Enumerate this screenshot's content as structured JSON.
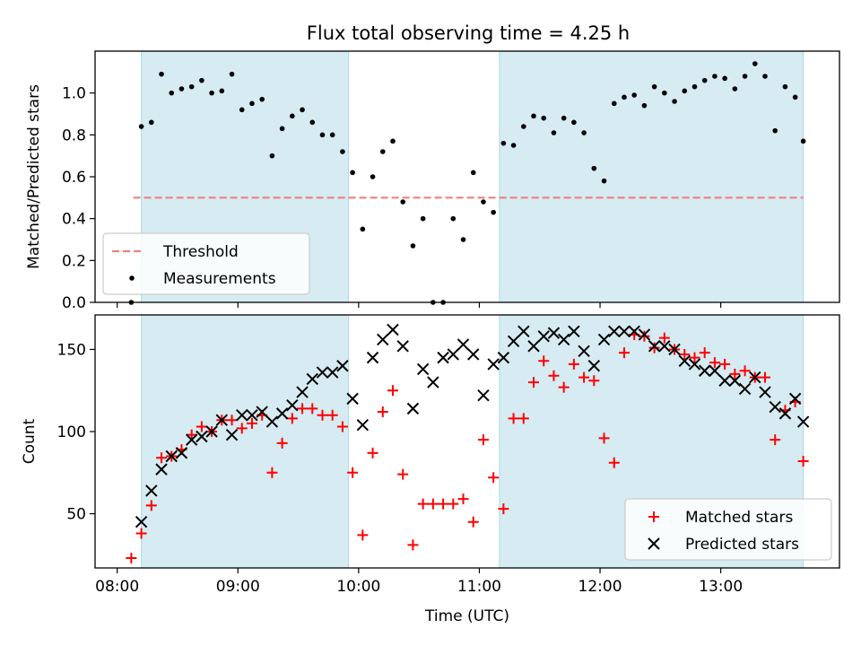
{
  "title": "Flux total observing time = 4.25 h",
  "colors": {
    "shade": "#add8e6",
    "threshold": "#f08080",
    "measurements": "#000000",
    "matched": "#ff0000",
    "predicted": "#000000"
  },
  "chart_data": [
    {
      "type": "scatter",
      "ylabel": "Matched/Predicted stars",
      "xlabel": "",
      "xlim": [
        "07:49",
        "13:59"
      ],
      "ylim": [
        0,
        1.2
      ],
      "x_ticks": [
        "08:00",
        "09:00",
        "10:00",
        "11:00",
        "12:00",
        "13:00"
      ],
      "y_ticks": [
        "0.0",
        "0.2",
        "0.4",
        "0.6",
        "0.8",
        "1.0"
      ],
      "shaded_spans": [
        [
          "08:12",
          "09:55"
        ],
        [
          "11:10",
          "13:41"
        ]
      ],
      "threshold": {
        "name": "Threshold",
        "value": 0.5,
        "x_range": [
          "08:08",
          "13:41"
        ]
      },
      "legend": {
        "position": "lower-left",
        "entries": [
          "Threshold",
          "Measurements"
        ]
      },
      "series": [
        {
          "name": "Measurements",
          "marker": "dot",
          "x": [
            "08:07",
            "08:12",
            "08:17",
            "08:22",
            "08:27",
            "08:32",
            "08:37",
            "08:42",
            "08:47",
            "08:52",
            "08:57",
            "09:02",
            "09:07",
            "09:12",
            "09:17",
            "09:22",
            "09:27",
            "09:32",
            "09:37",
            "09:42",
            "09:47",
            "09:52",
            "09:57",
            "10:02",
            "10:07",
            "10:12",
            "10:17",
            "10:22",
            "10:27",
            "10:32",
            "10:37",
            "10:42",
            "10:47",
            "10:52",
            "10:57",
            "11:02",
            "11:07",
            "11:12",
            "11:17",
            "11:22",
            "11:27",
            "11:32",
            "11:37",
            "11:42",
            "11:47",
            "11:52",
            "11:57",
            "12:02",
            "12:07",
            "12:12",
            "12:17",
            "12:22",
            "12:27",
            "12:32",
            "12:37",
            "12:42",
            "12:47",
            "12:52",
            "12:57",
            "13:02",
            "13:07",
            "13:12",
            "13:17",
            "13:22",
            "13:27",
            "13:32",
            "13:37",
            "13:41"
          ],
          "y": [
            0.0,
            0.84,
            0.86,
            1.09,
            1.0,
            1.02,
            1.03,
            1.06,
            1.0,
            1.01,
            1.09,
            0.92,
            0.95,
            0.97,
            0.7,
            0.83,
            0.89,
            0.92,
            0.86,
            0.8,
            0.8,
            0.72,
            0.62,
            0.35,
            0.6,
            0.72,
            0.77,
            0.48,
            0.27,
            0.4,
            0.0,
            0.0,
            0.4,
            0.3,
            0.62,
            0.48,
            0.43,
            0.76,
            0.75,
            0.84,
            0.89,
            0.88,
            0.81,
            0.88,
            0.86,
            0.81,
            0.64,
            0.58,
            0.95,
            0.98,
            0.99,
            0.94,
            1.03,
            1.0,
            0.96,
            1.01,
            1.03,
            1.06,
            1.08,
            1.07,
            1.02,
            1.08,
            1.14,
            1.08,
            0.82,
            1.03,
            0.98,
            0.77
          ]
        }
      ]
    },
    {
      "type": "scatter",
      "ylabel": "Count",
      "xlabel": "Time (UTC)",
      "xlim": [
        "07:49",
        "13:59"
      ],
      "ylim": [
        17,
        171
      ],
      "x_ticks": [
        "08:00",
        "09:00",
        "10:00",
        "11:00",
        "12:00",
        "13:00"
      ],
      "y_ticks": [
        "50",
        "100",
        "150"
      ],
      "shaded_spans": [
        [
          "08:12",
          "09:55"
        ],
        [
          "11:10",
          "13:41"
        ]
      ],
      "legend": {
        "position": "lower-right",
        "entries": [
          "Matched stars",
          "Predicted stars"
        ]
      },
      "series": [
        {
          "name": "Matched stars",
          "marker": "plus",
          "x": [
            "08:07",
            "08:12",
            "08:17",
            "08:22",
            "08:27",
            "08:32",
            "08:37",
            "08:42",
            "08:47",
            "08:52",
            "08:57",
            "09:02",
            "09:07",
            "09:12",
            "09:17",
            "09:22",
            "09:27",
            "09:32",
            "09:37",
            "09:42",
            "09:47",
            "09:52",
            "09:57",
            "10:02",
            "10:07",
            "10:12",
            "10:17",
            "10:22",
            "10:27",
            "10:32",
            "10:37",
            "10:42",
            "10:47",
            "10:52",
            "10:57",
            "11:02",
            "11:07",
            "11:12",
            "11:17",
            "11:22",
            "11:27",
            "11:32",
            "11:37",
            "11:42",
            "11:47",
            "11:52",
            "11:57",
            "12:02",
            "12:07",
            "12:12",
            "12:17",
            "12:22",
            "12:27",
            "12:32",
            "12:37",
            "12:42",
            "12:47",
            "12:52",
            "12:57",
            "13:02",
            "13:07",
            "13:12",
            "13:17",
            "13:22",
            "13:27",
            "13:32",
            "13:37",
            "13:41"
          ],
          "y": [
            23,
            38,
            55,
            84,
            85,
            89,
            98,
            103,
            100,
            107,
            107,
            102,
            105,
            110,
            75,
            93,
            108,
            114,
            114,
            110,
            110,
            103,
            75,
            37,
            87,
            112,
            125,
            74,
            31,
            56,
            56,
            56,
            56,
            59,
            45,
            95,
            72,
            53,
            108,
            108,
            130,
            143,
            134,
            127,
            141,
            133,
            131,
            96,
            81,
            148,
            159,
            158,
            151,
            157,
            150,
            147,
            145,
            148,
            142,
            141,
            135,
            137,
            133,
            133,
            95,
            113,
            118,
            82
          ]
        },
        {
          "name": "Predicted stars",
          "marker": "x",
          "x": [
            "08:12",
            "08:17",
            "08:22",
            "08:27",
            "08:32",
            "08:37",
            "08:42",
            "08:47",
            "08:52",
            "08:57",
            "09:02",
            "09:07",
            "09:12",
            "09:17",
            "09:22",
            "09:27",
            "09:32",
            "09:37",
            "09:42",
            "09:47",
            "09:52",
            "09:57",
            "10:02",
            "10:07",
            "10:12",
            "10:17",
            "10:22",
            "10:27",
            "10:32",
            "10:37",
            "10:42",
            "10:47",
            "10:52",
            "10:57",
            "11:02",
            "11:07",
            "11:12",
            "11:17",
            "11:22",
            "11:27",
            "11:32",
            "11:37",
            "11:42",
            "11:47",
            "11:52",
            "11:57",
            "12:02",
            "12:07",
            "12:12",
            "12:17",
            "12:22",
            "12:27",
            "12:32",
            "12:37",
            "12:42",
            "12:47",
            "12:52",
            "12:57",
            "13:02",
            "13:07",
            "13:12",
            "13:17",
            "13:22",
            "13:27",
            "13:32",
            "13:37",
            "13:41"
          ],
          "y": [
            45,
            64,
            77,
            85,
            87,
            95,
            97,
            100,
            107,
            98,
            110,
            110,
            112,
            106,
            111,
            116,
            124,
            132,
            136,
            136,
            140,
            120,
            104,
            145,
            156,
            162,
            152,
            114,
            138,
            130,
            145,
            147,
            153,
            147,
            122,
            141,
            145,
            155,
            161,
            152,
            158,
            160,
            156,
            161,
            149,
            140,
            156,
            161,
            161,
            161,
            159,
            152,
            152,
            150,
            143,
            141,
            137,
            137,
            131,
            131,
            126,
            133,
            124,
            115,
            111,
            120,
            106
          ]
        }
      ]
    }
  ]
}
